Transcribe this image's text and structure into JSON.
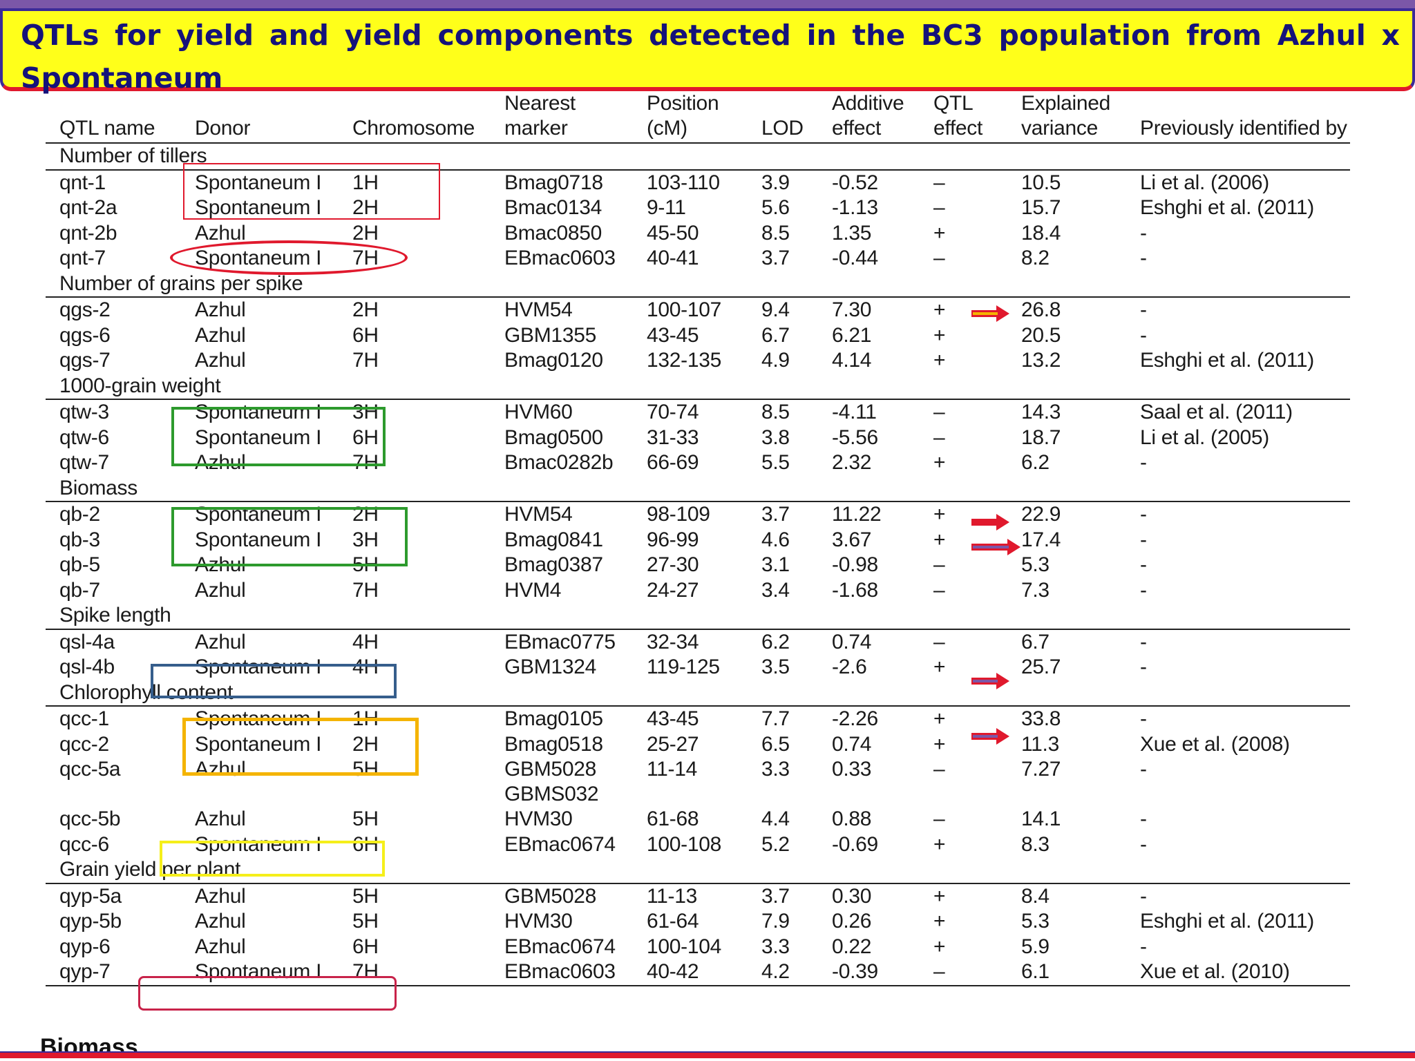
{
  "title": "QTLs for yield and yield components detected in the BC3 population from Azhul x Spontaneum",
  "headers": [
    "QTL name",
    "Donor",
    "Chromosome",
    "Nearest marker",
    "Position (cM)",
    "LOD",
    "Additive effect",
    "QTL effect",
    "Explained variance",
    "Previously identified by"
  ],
  "groups": [
    {
      "name": "Number of tillers",
      "rows": [
        [
          "qnt-1",
          "Spontaneum I",
          "1H",
          "Bmag0718",
          "103-110",
          "3.9",
          "-0.52",
          "–",
          "10.5",
          "Li et al. (2006)"
        ],
        [
          "qnt-2a",
          "Spontaneum I",
          "2H",
          "Bmac0134",
          "9-11",
          "5.6",
          "-1.13",
          "–",
          "15.7",
          "Eshghi et al. (2011)"
        ],
        [
          "qnt-2b",
          "Azhul",
          "2H",
          "Bmac0850",
          "45-50",
          "8.5",
          "1.35",
          "+",
          "18.4",
          "-"
        ],
        [
          "qnt-7",
          "Spontaneum I",
          "7H",
          "EBmac0603",
          "40-41",
          "3.7",
          "-0.44",
          "–",
          "8.2",
          "-"
        ]
      ]
    },
    {
      "name": "Number of  grains per spike",
      "rows": [
        [
          "qgs-2",
          "Azhul",
          "2H",
          "HVM54",
          "100-107",
          "9.4",
          "7.30",
          "+",
          "26.8",
          "-"
        ],
        [
          "qgs-6",
          "Azhul",
          "6H",
          "GBM1355",
          "43-45",
          "6.7",
          "6.21",
          "+",
          "20.5",
          "-"
        ],
        [
          "qgs-7",
          "Azhul",
          "7H",
          "Bmag0120",
          "132-135",
          "4.9",
          "4.14",
          "+",
          "13.2",
          "Eshghi et al. (2011)"
        ]
      ]
    },
    {
      "name": "1000-grain weight",
      "rows": [
        [
          "qtw-3",
          "Spontaneum I",
          "3H",
          "HVM60",
          "70-74",
          "8.5",
          "-4.11",
          "–",
          "14.3",
          "Saal et al. (2011)"
        ],
        [
          "qtw-6",
          "Spontaneum I",
          "6H",
          "Bmag0500",
          "31-33",
          "3.8",
          "-5.56",
          "–",
          "18.7",
          "Li et al. (2005)"
        ],
        [
          "qtw-7",
          "Azhul",
          "7H",
          "Bmac0282b",
          "66-69",
          "5.5",
          "2.32",
          "+",
          "6.2",
          "-"
        ]
      ]
    },
    {
      "name": "Biomass",
      "rows": [
        [
          "qb-2",
          "Spontaneum I",
          "2H",
          "HVM54",
          "98-109",
          "3.7",
          "11.22",
          "+",
          "22.9",
          "-"
        ],
        [
          "qb-3",
          "Spontaneum I",
          "3H",
          "Bmag0841",
          "96-99",
          "4.6",
          "3.67",
          "+",
          "17.4",
          "-"
        ],
        [
          "qb-5",
          "Azhul",
          "5H",
          "Bmag0387",
          "27-30",
          "3.1",
          "-0.98",
          "–",
          "5.3",
          "-"
        ],
        [
          "qb-7",
          "Azhul",
          "7H",
          "HVM4",
          "24-27",
          "3.4",
          "-1.68",
          "–",
          "7.3",
          "-"
        ]
      ]
    },
    {
      "name": "Spike length",
      "rows": [
        [
          "qsl-4a",
          "Azhul",
          "4H",
          "EBmac0775",
          "32-34",
          "6.2",
          "0.74",
          "–",
          "6.7",
          "-"
        ],
        [
          "qsl-4b",
          "Spontaneum I",
          "4H",
          "GBM1324",
          "119-125",
          "3.5",
          "-2.6",
          "+",
          "25.7",
          "-"
        ]
      ]
    },
    {
      "name": "Chlorophyll content",
      "rows": [
        [
          "qcc-1",
          "Spontaneum I",
          "1H",
          "Bmag0105",
          "43-45",
          "7.7",
          "-2.26",
          "+",
          "33.8",
          "-"
        ],
        [
          "qcc-2",
          "Spontaneum I",
          "2H",
          "Bmag0518",
          "25-27",
          "6.5",
          "0.74",
          "+",
          "11.3",
          "Xue et al. (2008)"
        ],
        [
          "qcc-5a",
          "Azhul",
          "5H",
          "GBM5028\nGBMS032",
          "11-14",
          "3.3",
          "0.33",
          "–",
          "7.27",
          "-"
        ],
        [
          "qcc-5b",
          "Azhul",
          "5H",
          "HVM30",
          "61-68",
          "4.4",
          "0.88",
          "–",
          "14.1",
          "-"
        ],
        [
          "qcc-6",
          "Spontaneum I",
          "6H",
          "EBmac0674",
          "100-108",
          "5.2",
          "-0.69",
          "+",
          "8.3",
          "-"
        ]
      ]
    },
    {
      "name": "Grain yield per plant",
      "rows": [
        [
          "qyp-5a",
          "Azhul",
          "5H",
          "GBM5028",
          "11-13",
          "3.7",
          "0.30",
          "+",
          "8.4",
          "-"
        ],
        [
          "qyp-5b",
          "Azhul",
          "5H",
          "HVM30",
          "61-64",
          "7.9",
          "0.26",
          "+",
          "5.3",
          "Eshghi et al. (2011)"
        ],
        [
          "qyp-6",
          "Azhul",
          "6H",
          "EBmac0674",
          "100-104",
          "3.3",
          "0.22",
          "+",
          "5.9",
          "-"
        ],
        [
          "qyp-7",
          "Spontaneum I",
          "7H",
          "EBmac0603",
          "40-42",
          "4.2",
          "-0.39",
          "–",
          "6.1",
          "Xue et al. (2010)"
        ]
      ]
    }
  ],
  "footer_partial": "Biomass",
  "colors": {
    "title_bg": "#ffff1a",
    "title_text": "#15127a",
    "accent_red": "#e0192d",
    "accent_purple": "#3b2a98",
    "green": "#2d9a2d",
    "blue": "#365e8c",
    "orange": "#f4b400",
    "yellow": "#f5ef1a",
    "crimson": "#c8234a"
  }
}
